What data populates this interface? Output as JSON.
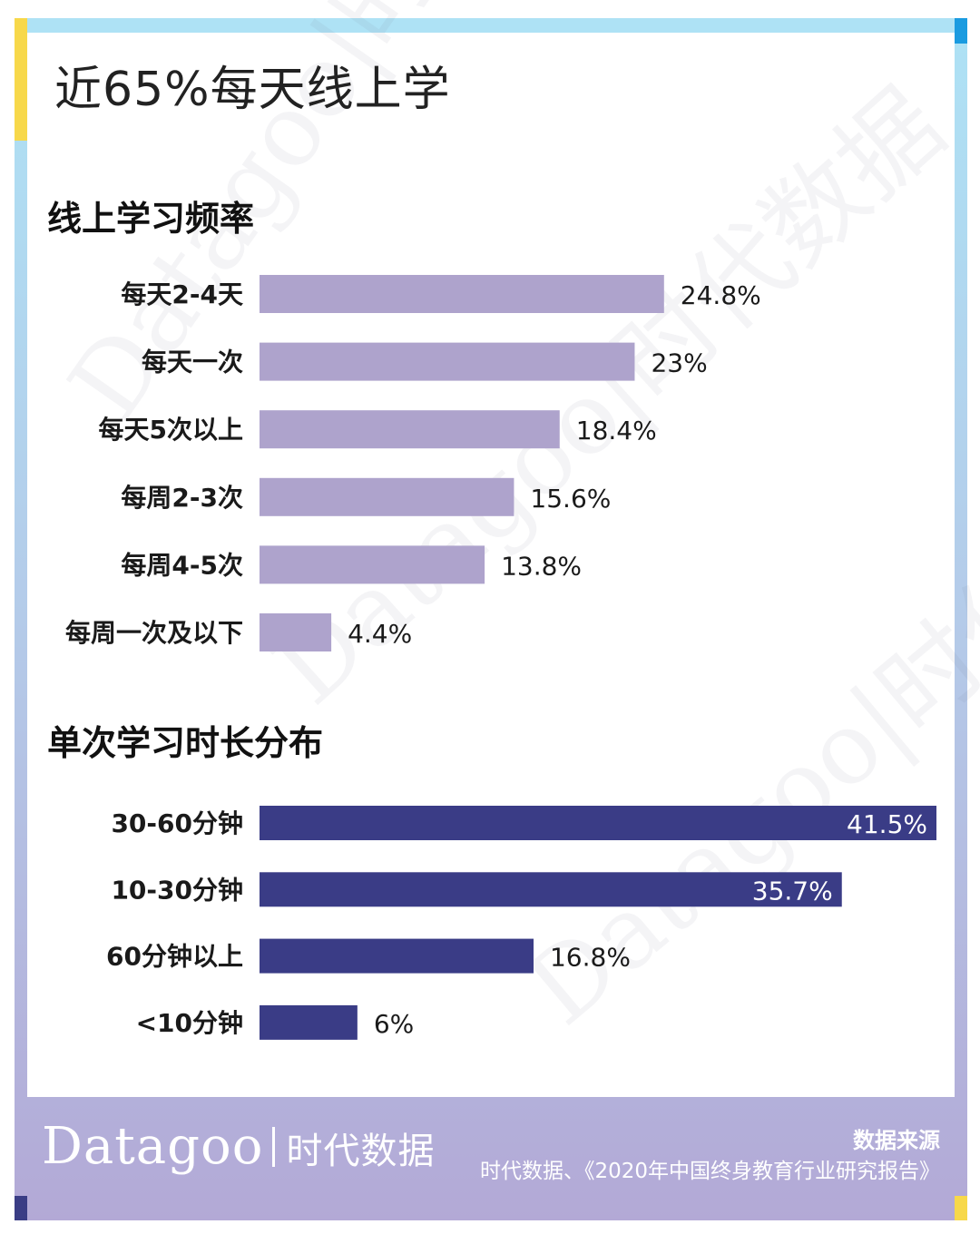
{
  "headline": "近65%每天线上学",
  "watermark_text": "Datagoo|时代数据",
  "footer": {
    "logo_en": "Datagoo",
    "logo_cn": "时代数据",
    "source_title": "数据来源",
    "source_text": "时代数据、《2020年中国终身教育行业研究报告》"
  },
  "colors": {
    "freq_bar": "#aea3cc",
    "duration_bar": "#3a3c86",
    "label": "#1a1a1a"
  },
  "chart_data": [
    {
      "type": "bar",
      "orientation": "horizontal",
      "title": "线上学习频率",
      "categories": [
        "每天2-4天",
        "每天一次",
        "每天5次以上",
        "每周2-3次",
        "每周4-5次",
        "每周一次及以下"
      ],
      "values": [
        24.8,
        23,
        18.4,
        15.6,
        13.8,
        4.4
      ],
      "value_labels": [
        "24.8%",
        "23%",
        "18.4%",
        "15.6%",
        "13.8%",
        "4.4%"
      ],
      "unit": "%",
      "xlim": [
        0,
        41.5
      ]
    },
    {
      "type": "bar",
      "orientation": "horizontal",
      "title": "单次学习时长分布",
      "categories": [
        "30-60分钟",
        "10-30分钟",
        "60分钟以上",
        "<10分钟"
      ],
      "values": [
        41.5,
        35.7,
        16.8,
        6
      ],
      "value_labels": [
        "41.5%",
        "35.7%",
        "16.8%",
        "6%"
      ],
      "unit": "%",
      "xlim": [
        0,
        41.5
      ]
    }
  ]
}
